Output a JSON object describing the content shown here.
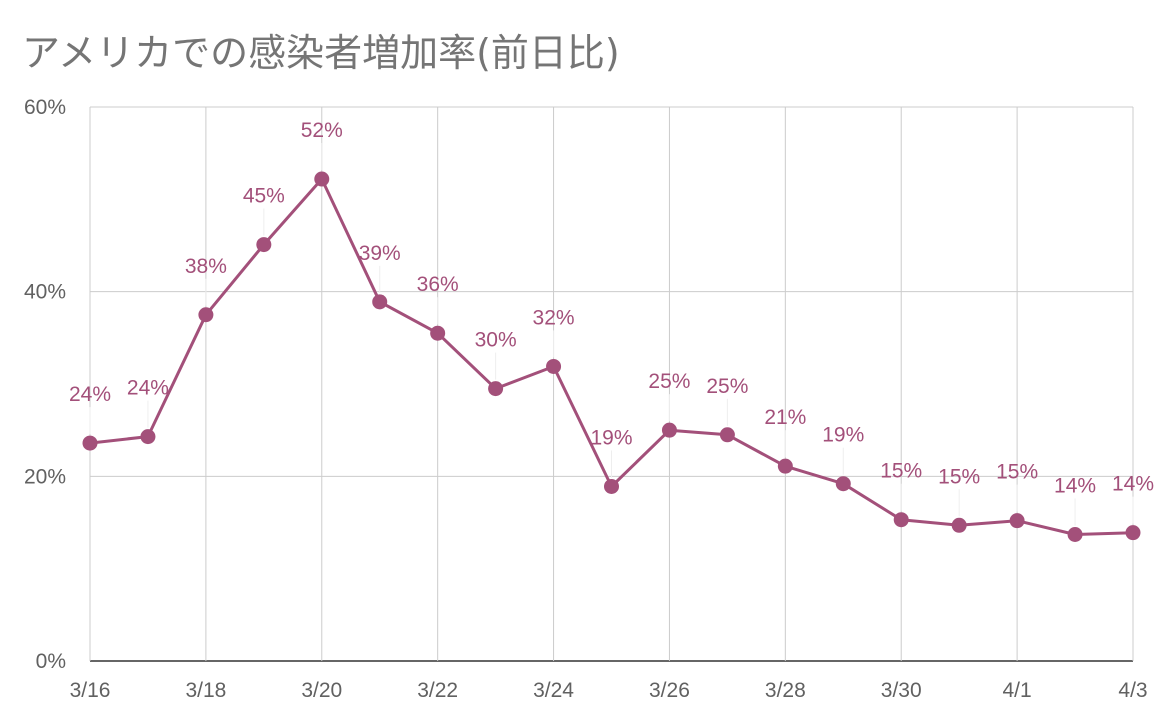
{
  "chart_data": {
    "type": "line",
    "title": "アメリカでの感染者増加率(前日比)",
    "x": [
      "3/16",
      "3/17",
      "3/18",
      "3/19",
      "3/20",
      "3/21",
      "3/22",
      "3/23",
      "3/24",
      "3/25",
      "3/26",
      "3/27",
      "3/28",
      "3/29",
      "3/30",
      "3/31",
      "4/1",
      "4/2",
      "4/3"
    ],
    "x_tick_labels": [
      "3/16",
      "3/18",
      "3/20",
      "3/22",
      "3/24",
      "3/26",
      "3/28",
      "3/30",
      "4/1",
      "4/3"
    ],
    "series": [
      {
        "values": [
          23.6,
          24.3,
          37.5,
          45.1,
          52.2,
          38.9,
          35.5,
          29.5,
          31.9,
          18.9,
          25.0,
          24.5,
          21.1,
          19.2,
          15.3,
          14.7,
          15.2,
          13.7,
          13.9
        ],
        "labels": [
          "24%",
          "24%",
          "38%",
          "45%",
          "52%",
          "39%",
          "36%",
          "30%",
          "32%",
          "19%",
          "25%",
          "25%",
          "21%",
          "19%",
          "15%",
          "15%",
          "15%",
          "14%",
          "14%"
        ],
        "color": "#a3507a"
      }
    ],
    "ylim": [
      0,
      60
    ],
    "y_ticks": [
      0,
      20,
      40,
      60
    ],
    "y_tick_labels": [
      "0%",
      "20%",
      "40%",
      "60%"
    ],
    "grid": true,
    "legend": "none"
  }
}
